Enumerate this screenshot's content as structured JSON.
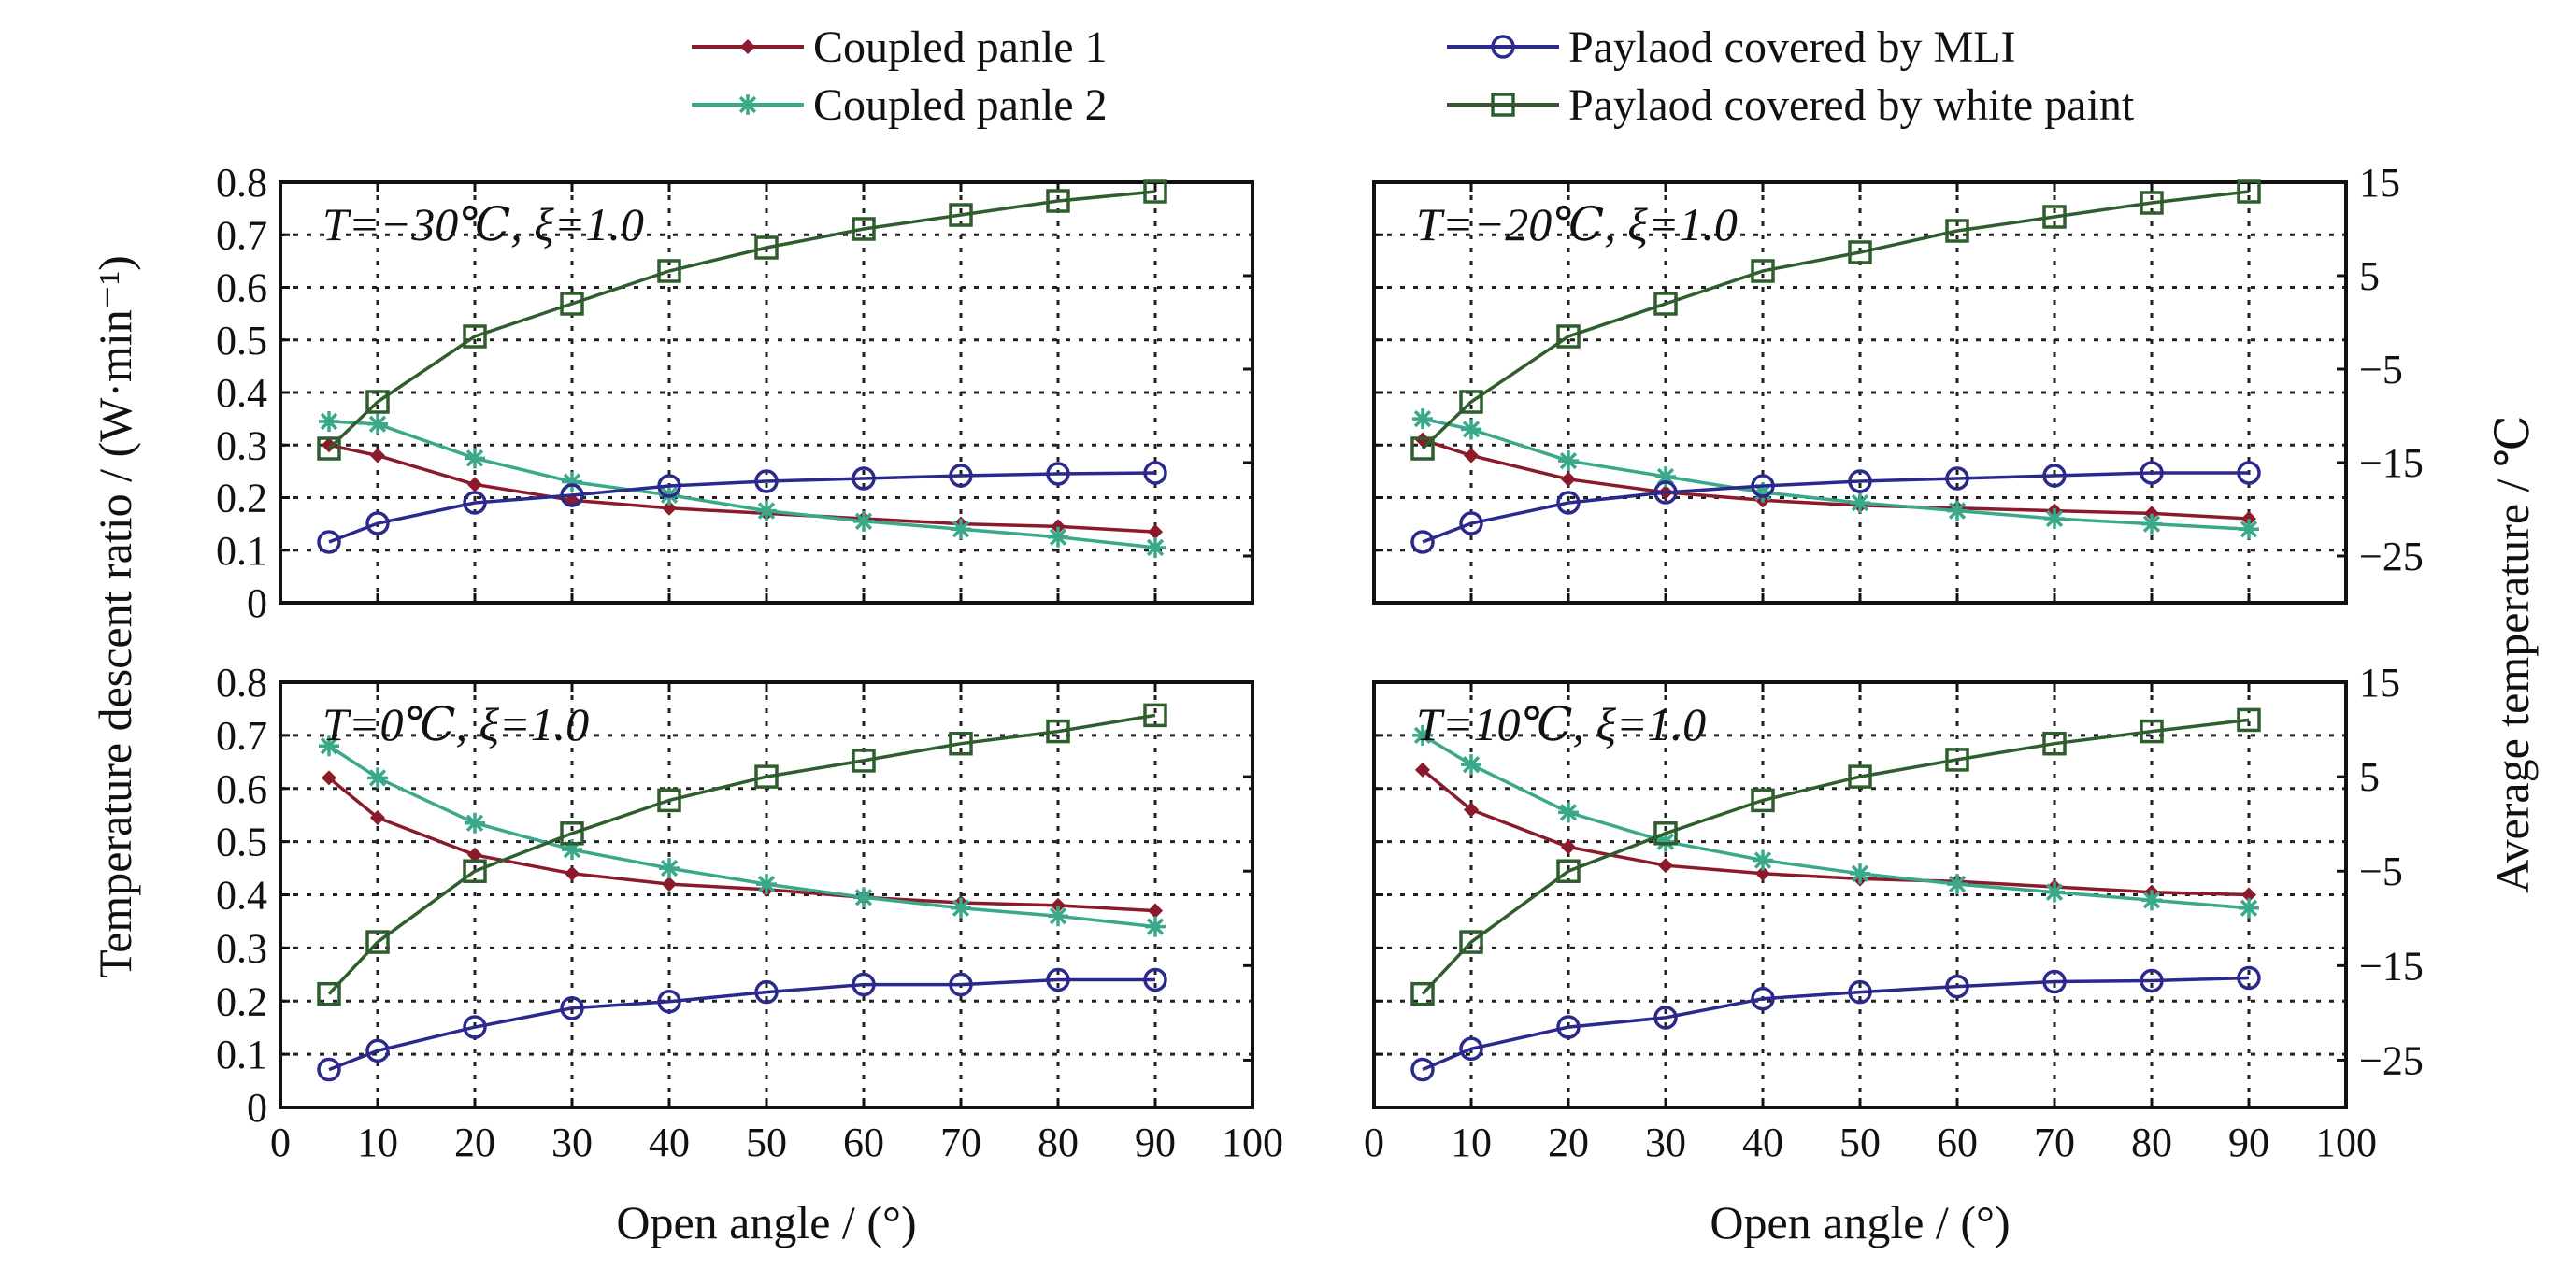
{
  "legend": {
    "items": [
      {
        "label": "Coupled panle 1",
        "color": "#8b1a2b",
        "marker": "diamond"
      },
      {
        "label": "Coupled panle 2",
        "color": "#3aa88a",
        "marker": "star"
      },
      {
        "label": "Paylaod covered by MLI",
        "color": "#2a2a8c",
        "marker": "circle"
      },
      {
        "label": "Paylaod covered by white paint",
        "color": "#2e5e2e",
        "marker": "square"
      }
    ]
  },
  "axes": {
    "y_left_title": "Temperature descent ratio / (W·min⁻¹)",
    "y_right_title": "Average temperature / ℃",
    "x_title": "Open angle / (°)",
    "x_ticks": [
      "0",
      "10",
      "20",
      "30",
      "40",
      "50",
      "60",
      "70",
      "80",
      "90",
      "100"
    ],
    "y_left_ticks": [
      "0",
      "0.1",
      "0.2",
      "0.3",
      "0.4",
      "0.5",
      "0.6",
      "0.7",
      "0.8"
    ],
    "y_right_ticks": [
      "15",
      "5",
      "−5",
      "−15",
      "−25"
    ]
  },
  "chart_data": [
    {
      "type": "line",
      "panel_label": "T=−30℃, ξ=1.0",
      "x": [
        5,
        10,
        20,
        30,
        40,
        50,
        60,
        70,
        80,
        90
      ],
      "xlim": [
        0,
        100
      ],
      "ylim": [
        0,
        0.8
      ],
      "y2lim": [
        -30,
        15
      ],
      "grid": true,
      "series": [
        {
          "name": "Coupled panle 1",
          "axis": "left",
          "values": [
            0.3,
            0.28,
            0.225,
            0.195,
            0.18,
            0.17,
            0.16,
            0.15,
            0.145,
            0.135
          ]
        },
        {
          "name": "Coupled panle 2",
          "axis": "left",
          "values": [
            0.345,
            0.34,
            0.275,
            0.23,
            0.205,
            0.175,
            0.155,
            0.14,
            0.125,
            0.105
          ]
        },
        {
          "name": "Paylaod covered by MLI",
          "axis": "right",
          "values": [
            -23.5,
            -21.5,
            -19.3,
            -18.5,
            -17.5,
            -17.0,
            -16.7,
            -16.4,
            -16.2,
            -16.1
          ]
        },
        {
          "name": "Paylaod covered by white paint",
          "axis": "right",
          "values": [
            -13.5,
            -8.5,
            -1.5,
            2.0,
            5.5,
            8.0,
            10.0,
            11.5,
            13.0,
            14.0
          ]
        }
      ]
    },
    {
      "type": "line",
      "panel_label": "T=−20℃, ξ=1.0",
      "x": [
        5,
        10,
        20,
        30,
        40,
        50,
        60,
        70,
        80,
        90
      ],
      "xlim": [
        0,
        100
      ],
      "ylim": [
        0,
        0.8
      ],
      "y2lim": [
        -30,
        15
      ],
      "grid": true,
      "series": [
        {
          "name": "Coupled panle 1",
          "axis": "left",
          "values": [
            0.31,
            0.28,
            0.235,
            0.21,
            0.195,
            0.185,
            0.18,
            0.175,
            0.17,
            0.16
          ]
        },
        {
          "name": "Coupled panle 2",
          "axis": "left",
          "values": [
            0.35,
            0.33,
            0.27,
            0.24,
            0.21,
            0.19,
            0.175,
            0.16,
            0.15,
            0.14
          ]
        },
        {
          "name": "Paylaod covered by MLI",
          "axis": "right",
          "values": [
            -23.5,
            -21.5,
            -19.3,
            -18.2,
            -17.5,
            -17.0,
            -16.7,
            -16.4,
            -16.1,
            -16.1
          ]
        },
        {
          "name": "Paylaod covered by white paint",
          "axis": "right",
          "values": [
            -13.5,
            -8.5,
            -1.5,
            2.0,
            5.5,
            7.5,
            9.8,
            11.3,
            12.8,
            14.0
          ]
        }
      ]
    },
    {
      "type": "line",
      "panel_label": "T=0℃, ξ=1.0",
      "x": [
        5,
        10,
        20,
        30,
        40,
        50,
        60,
        70,
        80,
        90
      ],
      "xlim": [
        0,
        100
      ],
      "ylim": [
        0,
        0.8
      ],
      "y2lim": [
        -30,
        15
      ],
      "grid": true,
      "series": [
        {
          "name": "Coupled panle 1",
          "axis": "left",
          "values": [
            0.62,
            0.545,
            0.475,
            0.44,
            0.42,
            0.41,
            0.395,
            0.385,
            0.38,
            0.37
          ]
        },
        {
          "name": "Coupled panle 2",
          "axis": "left",
          "values": [
            0.68,
            0.62,
            0.535,
            0.485,
            0.45,
            0.42,
            0.395,
            0.375,
            0.36,
            0.34
          ]
        },
        {
          "name": "Paylaod covered by MLI",
          "axis": "right",
          "values": [
            -26.0,
            -24.0,
            -21.5,
            -19.5,
            -18.8,
            -17.8,
            -17.0,
            -17.0,
            -16.5,
            -16.5
          ]
        },
        {
          "name": "Paylaod covered by white paint",
          "axis": "right",
          "values": [
            -18.0,
            -12.5,
            -5.0,
            -1.0,
            2.5,
            5.0,
            6.7,
            8.5,
            9.8,
            11.5
          ]
        }
      ]
    },
    {
      "type": "line",
      "panel_label": "T=10℃, ξ=1.0",
      "x": [
        5,
        10,
        20,
        30,
        40,
        50,
        60,
        70,
        80,
        90
      ],
      "xlim": [
        0,
        100
      ],
      "ylim": [
        0,
        0.8
      ],
      "y2lim": [
        -30,
        15
      ],
      "grid": true,
      "series": [
        {
          "name": "Coupled panle 1",
          "axis": "left",
          "values": [
            0.635,
            0.56,
            0.49,
            0.455,
            0.44,
            0.43,
            0.425,
            0.415,
            0.405,
            0.4
          ]
        },
        {
          "name": "Coupled panle 2",
          "axis": "left",
          "values": [
            0.7,
            0.645,
            0.555,
            0.5,
            0.465,
            0.44,
            0.42,
            0.405,
            0.39,
            0.375
          ]
        },
        {
          "name": "Paylaod covered by MLI",
          "axis": "right",
          "values": [
            -26.0,
            -23.8,
            -21.5,
            -20.5,
            -18.5,
            -17.8,
            -17.2,
            -16.7,
            -16.6,
            -16.3
          ]
        },
        {
          "name": "Paylaod covered by white paint",
          "axis": "right",
          "values": [
            -18.0,
            -12.5,
            -5.0,
            -1.0,
            2.5,
            5.0,
            6.8,
            8.5,
            9.8,
            11.0
          ]
        }
      ]
    }
  ]
}
